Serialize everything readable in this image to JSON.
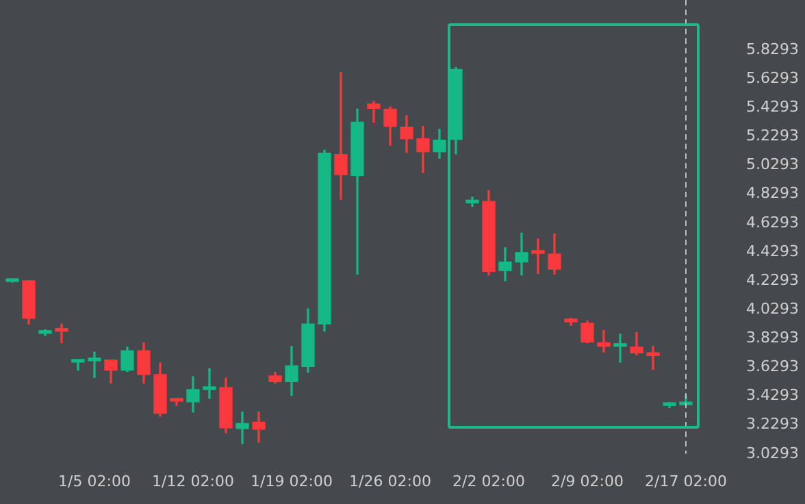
{
  "chart_data": {
    "type": "candlestick",
    "categories": [
      null,
      null,
      null,
      null,
      null,
      "1/5 02:00",
      null,
      null,
      null,
      null,
      null,
      "1/12 02:00",
      null,
      null,
      null,
      null,
      null,
      "1/19 02:00",
      null,
      null,
      null,
      null,
      null,
      "1/26 02:00",
      null,
      null,
      null,
      null,
      null,
      "2/2 02:00",
      null,
      null,
      null,
      null,
      null,
      "2/9 02:00",
      null,
      null,
      null,
      null,
      null,
      "2/17 02:00"
    ],
    "ohlc": [
      [
        4.225,
        4.24,
        4.22,
        4.235
      ],
      [
        4.23,
        4.23,
        3.93,
        3.97
      ],
      [
        3.865,
        3.89,
        3.85,
        3.88
      ],
      [
        3.885,
        3.93,
        3.8,
        3.88
      ],
      [
        3.665,
        3.67,
        3.61,
        3.67
      ],
      [
        3.675,
        3.735,
        3.56,
        3.68
      ],
      [
        3.68,
        3.68,
        3.52,
        3.61
      ],
      [
        3.61,
        3.77,
        3.6,
        3.745
      ],
      [
        3.745,
        3.8,
        3.52,
        3.58
      ],
      [
        3.58,
        3.66,
        3.29,
        3.31
      ],
      [
        3.4,
        3.4,
        3.365,
        3.395
      ],
      [
        3.39,
        3.565,
        3.32,
        3.475
      ],
      [
        3.475,
        3.62,
        3.415,
        3.49
      ],
      [
        3.49,
        3.555,
        3.175,
        3.21
      ],
      [
        3.205,
        3.32,
        3.1,
        3.24
      ],
      [
        3.25,
        3.32,
        3.11,
        3.2
      ],
      [
        3.57,
        3.595,
        3.52,
        3.53
      ],
      [
        3.53,
        3.775,
        3.435,
        3.64
      ],
      [
        3.635,
        4.035,
        3.595,
        3.93
      ],
      [
        3.93,
        5.135,
        3.88,
        5.115
      ],
      [
        5.105,
        5.675,
        4.795,
        4.965
      ],
      [
        4.96,
        5.42,
        4.275,
        5.33
      ],
      [
        5.455,
        5.475,
        5.33,
        5.425
      ],
      [
        5.42,
        5.435,
        5.17,
        5.3
      ],
      [
        5.295,
        5.375,
        5.12,
        5.215
      ],
      [
        5.215,
        5.3,
        4.98,
        5.125
      ],
      [
        5.125,
        5.28,
        5.08,
        5.205
      ],
      [
        5.21,
        5.71,
        5.11,
        5.695
      ],
      [
        4.77,
        4.81,
        4.745,
        4.775
      ],
      [
        4.78,
        4.855,
        4.27,
        4.295
      ],
      [
        4.3,
        4.46,
        4.23,
        4.36
      ],
      [
        4.36,
        4.56,
        4.27,
        4.425
      ],
      [
        4.425,
        4.52,
        4.28,
        4.42
      ],
      [
        4.415,
        4.555,
        4.275,
        4.31
      ],
      [
        3.95,
        3.97,
        3.92,
        3.945
      ],
      [
        3.935,
        3.95,
        3.8,
        3.805
      ],
      [
        3.8,
        3.885,
        3.735,
        3.775
      ],
      [
        3.775,
        3.86,
        3.665,
        3.78
      ],
      [
        3.77,
        3.87,
        3.715,
        3.73
      ],
      [
        3.73,
        3.775,
        3.615,
        3.71
      ],
      [
        3.365,
        3.385,
        3.35,
        3.37
      ],
      [
        3.37,
        3.435,
        3.37,
        3.375
      ]
    ],
    "colors": [
      "#16b886",
      "#f9393c",
      "#16b886",
      "#f9393c",
      "#16b886",
      "#16b886",
      "#f9393c",
      "#16b886",
      "#f9393c",
      "#f9393c",
      "#f9393c",
      "#16b886",
      "#16b886",
      "#f9393c",
      "#16b886",
      "#f9393c",
      "#f9393c",
      "#16b886",
      "#16b886",
      "#16b886",
      "#f9393c",
      "#16b886",
      "#f9393c",
      "#f9393c",
      "#f9393c",
      "#f9393c",
      "#16b886",
      "#16b886",
      "#16b886",
      "#f9393c",
      "#16b886",
      "#16b886",
      "#f9393c",
      "#f9393c",
      "#f9393c",
      "#f9393c",
      "#f9393c",
      "#16b886",
      "#f9393c",
      "#f9393c",
      "#16b886",
      "#16b886"
    ],
    "ylim": [
      3.0293,
      5.8293
    ],
    "yticks": [
      3.0293,
      3.2293,
      3.4293,
      3.6293,
      3.8293,
      4.0293,
      4.2293,
      4.4293,
      4.6293,
      4.8293,
      5.0293,
      5.2293,
      5.4293,
      5.6293,
      5.8293
    ],
    "ref_lines": [
      {
        "axis": "x",
        "value": "2/17 02:00",
        "color": "#bbbbbb",
        "line_style": "dashed"
      }
    ]
  }
}
